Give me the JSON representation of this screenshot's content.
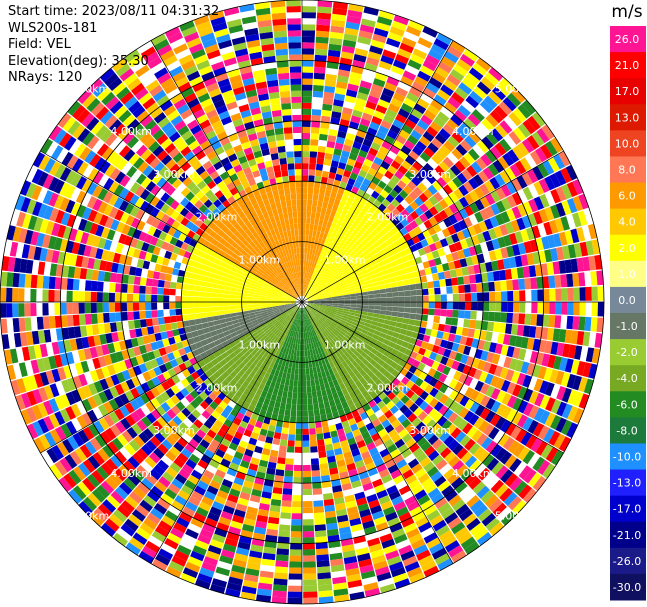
{
  "info": {
    "start_time": "Start time: 2023/08/11 04:31:32",
    "instrument": "WLS200s-181",
    "field": "Field: VEL",
    "elevation": "Elevation(deg): 35.30",
    "nrays": "NRays: 120"
  },
  "colorbar": {
    "unit": "m/s",
    "ticks": [
      "26.0",
      "21.0",
      "17.0",
      "13.0",
      "10.0",
      "8.0",
      "6.0",
      "4.0",
      "2.0",
      "1.0",
      "0.0",
      "-1.0",
      "-2.0",
      "-4.0",
      "-6.0",
      "-8.0",
      "-10.0",
      "-13.0",
      "-17.0",
      "-21.0",
      "-26.0",
      "-30.0"
    ],
    "colors": [
      "#ff1493",
      "#ff0000",
      "#e80000",
      "#dd1a00",
      "#ee4422",
      "#ff7755",
      "#ff9900",
      "#ffc800",
      "#ffff00",
      "#ffff88",
      "#778899",
      "#667766",
      "#99cc33",
      "#77aa22",
      "#228b22",
      "#1c7a3a",
      "#1e90ff",
      "#2020ff",
      "#0000cd",
      "#00008b",
      "#1a1a88",
      "#101060"
    ]
  },
  "chart_data": {
    "type": "heatmap",
    "subtype": "polar-ppi",
    "field": "VEL",
    "units": "m/s",
    "nrays": 120,
    "vmin": -30.0,
    "vmax": 26.0,
    "range_rings_km": [
      1.0,
      2.0,
      3.0,
      4.0,
      5.0
    ],
    "ring_labels": [
      "1.00km",
      "2.00km",
      "3.00km",
      "4.00km",
      "5.00km"
    ],
    "azimuth_spokes_deg": [
      0,
      30,
      60,
      90,
      120,
      150,
      180,
      210,
      240,
      270,
      300,
      330
    ],
    "noise_beyond_km": 2.0,
    "sectors": [
      {
        "from_deg": 20,
        "to_deg": 80,
        "max_km": 2.0,
        "value": 2.0
      },
      {
        "from_deg": 80,
        "to_deg": 100,
        "max_km": 2.0,
        "value": -1.0
      },
      {
        "from_deg": 100,
        "to_deg": 155,
        "max_km": 2.0,
        "value": -3.0
      },
      {
        "from_deg": 155,
        "to_deg": 205,
        "max_km": 2.0,
        "value": -6.0
      },
      {
        "from_deg": 205,
        "to_deg": 240,
        "max_km": 2.0,
        "value": -3.0
      },
      {
        "from_deg": 240,
        "to_deg": 262,
        "max_km": 2.0,
        "value": -1.0
      },
      {
        "from_deg": 262,
        "to_deg": 300,
        "max_km": 2.0,
        "value": 2.0
      },
      {
        "from_deg": 300,
        "to_deg": 360,
        "max_km": 2.0,
        "value": 7.0
      },
      {
        "from_deg": 0,
        "to_deg": 20,
        "max_km": 2.0,
        "value": 7.0
      }
    ]
  }
}
